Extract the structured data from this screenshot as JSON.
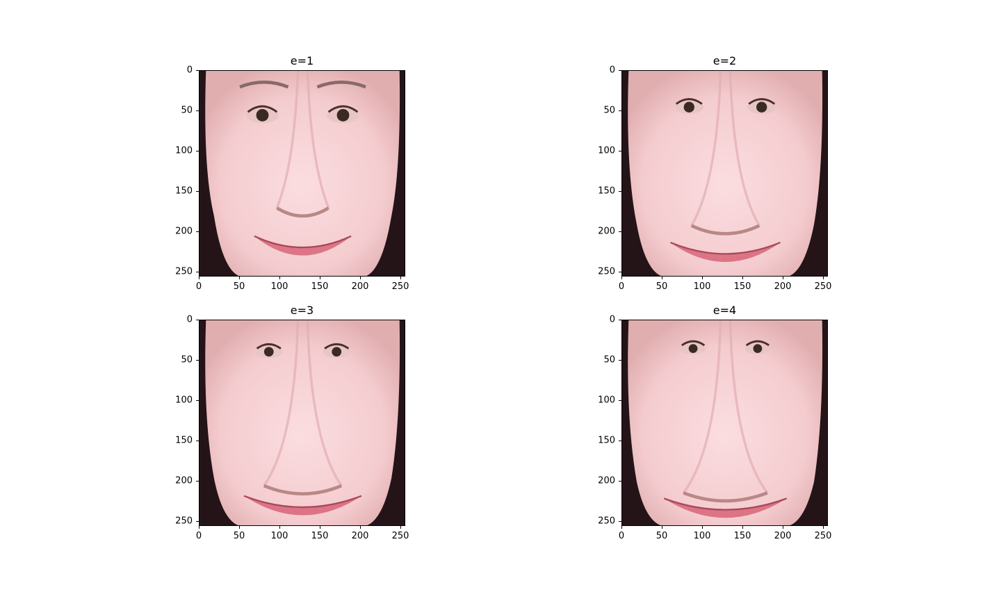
{
  "figure": {
    "panels": [
      {
        "title": "e=1",
        "image_description_icon": "face-warp-e1-image"
      },
      {
        "title": "e=2",
        "image_description_icon": "face-warp-e2-image"
      },
      {
        "title": "e=3",
        "image_description_icon": "face-warp-e3-image"
      },
      {
        "title": "e=4",
        "image_description_icon": "face-warp-e4-image"
      }
    ],
    "x_ticks": [
      "0",
      "50",
      "100",
      "150",
      "200",
      "250"
    ],
    "y_ticks": [
      "0",
      "50",
      "100",
      "150",
      "200",
      "250"
    ],
    "axis_range": [
      0,
      256
    ],
    "colors": {
      "skin": "#f4cccf",
      "skin_shadow": "#e1aeb0",
      "hair": "#241418",
      "lip": "#d96a7c",
      "eye": "#3a2a24"
    }
  }
}
